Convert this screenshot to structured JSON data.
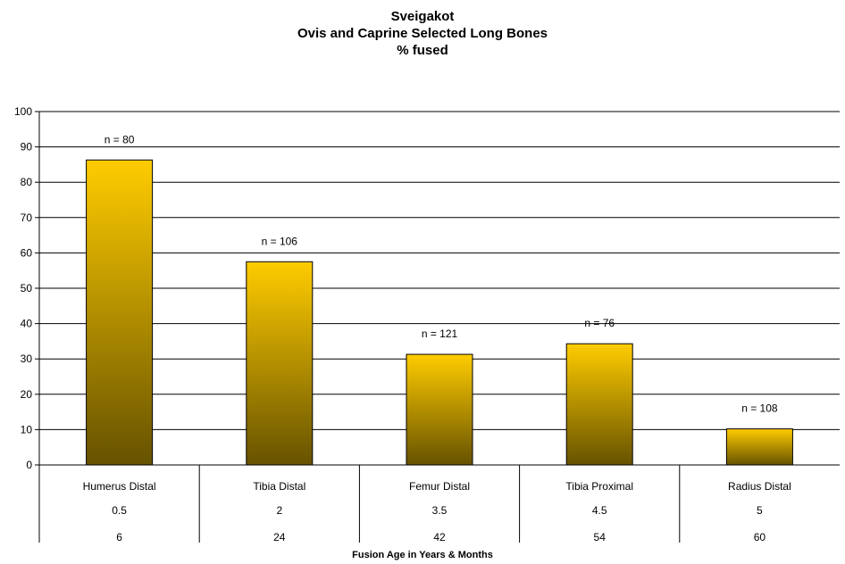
{
  "chart_data": {
    "type": "bar",
    "title": [
      "Sveigakot",
      "Ovis and Caprine Selected Long Bones",
      "% fused"
    ],
    "xlabel": "Fusion Age in Years & Months",
    "ylabel": "",
    "ylim": [
      0,
      100
    ],
    "yticks": [
      0,
      10,
      20,
      30,
      40,
      50,
      60,
      70,
      80,
      90,
      100
    ],
    "grid": true,
    "legend": "none",
    "categories": [
      "Humerus Distal",
      "Tibia Distal",
      "Femur Distal",
      "Tibia Proximal",
      "Radius Distal"
    ],
    "years": [
      "0.5",
      "2",
      "3.5",
      "4.5",
      "5"
    ],
    "months": [
      "6",
      "24",
      "42",
      "54",
      "60"
    ],
    "values": [
      86.3,
      57.5,
      31.3,
      34.3,
      10.2
    ],
    "data_labels": [
      "n = 80",
      "n = 106",
      "n = 121",
      "n = 76",
      "n = 108"
    ],
    "colors": {
      "bar_top": "#ffcc00",
      "bar_bottom": "#665200",
      "grid": "#000000"
    }
  }
}
